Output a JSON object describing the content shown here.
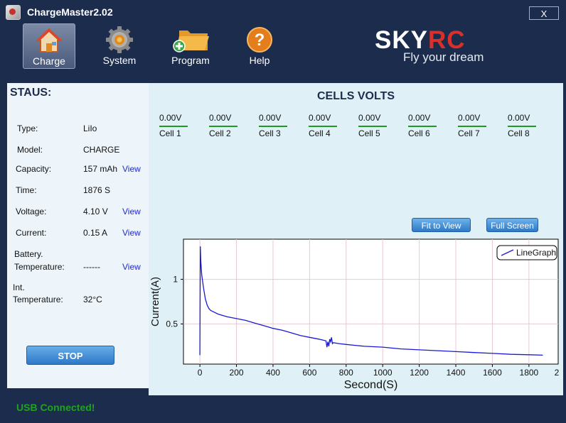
{
  "window": {
    "title": "ChargeMaster2.02",
    "close_label": "X"
  },
  "toolbar": {
    "items": [
      {
        "label": "Charge",
        "icon": "home-icon",
        "active": true
      },
      {
        "label": "System",
        "icon": "gear-icon",
        "active": false
      },
      {
        "label": "Program",
        "icon": "folder-add-icon",
        "active": false
      },
      {
        "label": "Help",
        "icon": "help-icon",
        "active": false
      }
    ]
  },
  "brand": {
    "sky": "SKY",
    "rc": "RC",
    "tagline": "Fly your dream"
  },
  "status": {
    "title": "STAUS:",
    "type_label": "Type:",
    "type_value": "LiIo",
    "model_label": "Model:",
    "model_value": "CHARGE",
    "capacity_label": "Capacity:",
    "capacity_value": "157 mAh",
    "time_label": "Time:",
    "time_value": "1876 S",
    "voltage_label": "Voltage:",
    "voltage_value": "4.10 V",
    "current_label": "Current:",
    "current_value": "0.15 A",
    "battery_label_1": "Battery.",
    "battery_label_2": "Temperature:",
    "battery_value": "------",
    "int_label_1": "Int.",
    "int_label_2": "Temperature:",
    "int_value": "32°C",
    "view_label": "View",
    "stop_label": "STOP"
  },
  "cells": {
    "title": "CELLS VOLTS",
    "items": [
      {
        "value": "0.00V",
        "name": "Cell 1"
      },
      {
        "value": "0.00V",
        "name": "Cell 2"
      },
      {
        "value": "0.00V",
        "name": "Cell 3"
      },
      {
        "value": "0.00V",
        "name": "Cell 4"
      },
      {
        "value": "0.00V",
        "name": "Cell 5"
      },
      {
        "value": "0.00V",
        "name": "Cell 6"
      },
      {
        "value": "0.00V",
        "name": "Cell 7"
      },
      {
        "value": "0.00V",
        "name": "Cell 8"
      }
    ]
  },
  "buttons": {
    "fit_to_view": "Fit to View",
    "full_screen": "Full Screen"
  },
  "chart_data": {
    "type": "line",
    "xlabel": "Second(S)",
    "ylabel": "Current(A)",
    "xlim": [
      -90,
      1960
    ],
    "ylim": [
      0.05,
      1.45
    ],
    "xticks": [
      0,
      200,
      400,
      600,
      800,
      1000,
      1200,
      1400,
      1600,
      1800
    ],
    "xticks_extra": "2",
    "yticks": [
      0.5,
      1
    ],
    "grid": true,
    "legend": "top-right",
    "series": [
      {
        "name": "LineGraph",
        "color": "#1a1ad6",
        "x": [
          0,
          2,
          5,
          10,
          20,
          30,
          40,
          50,
          60,
          80,
          100,
          150,
          200,
          250,
          300,
          350,
          400,
          450,
          500,
          550,
          600,
          650,
          690,
          695,
          700,
          705,
          710,
          715,
          720,
          725,
          730,
          760,
          800,
          850,
          900,
          1000,
          1100,
          1200,
          1300,
          1400,
          1500,
          1600,
          1700,
          1800,
          1876
        ],
        "y": [
          0.15,
          1.37,
          1.2,
          1.05,
          0.9,
          0.78,
          0.71,
          0.67,
          0.65,
          0.63,
          0.61,
          0.58,
          0.56,
          0.54,
          0.51,
          0.48,
          0.45,
          0.43,
          0.4,
          0.37,
          0.35,
          0.33,
          0.31,
          0.24,
          0.3,
          0.25,
          0.33,
          0.3,
          0.35,
          0.28,
          0.29,
          0.28,
          0.27,
          0.26,
          0.25,
          0.24,
          0.22,
          0.21,
          0.2,
          0.19,
          0.18,
          0.17,
          0.16,
          0.155,
          0.15
        ]
      }
    ]
  },
  "statusbar": {
    "usb_text": "USB  Connected!"
  }
}
